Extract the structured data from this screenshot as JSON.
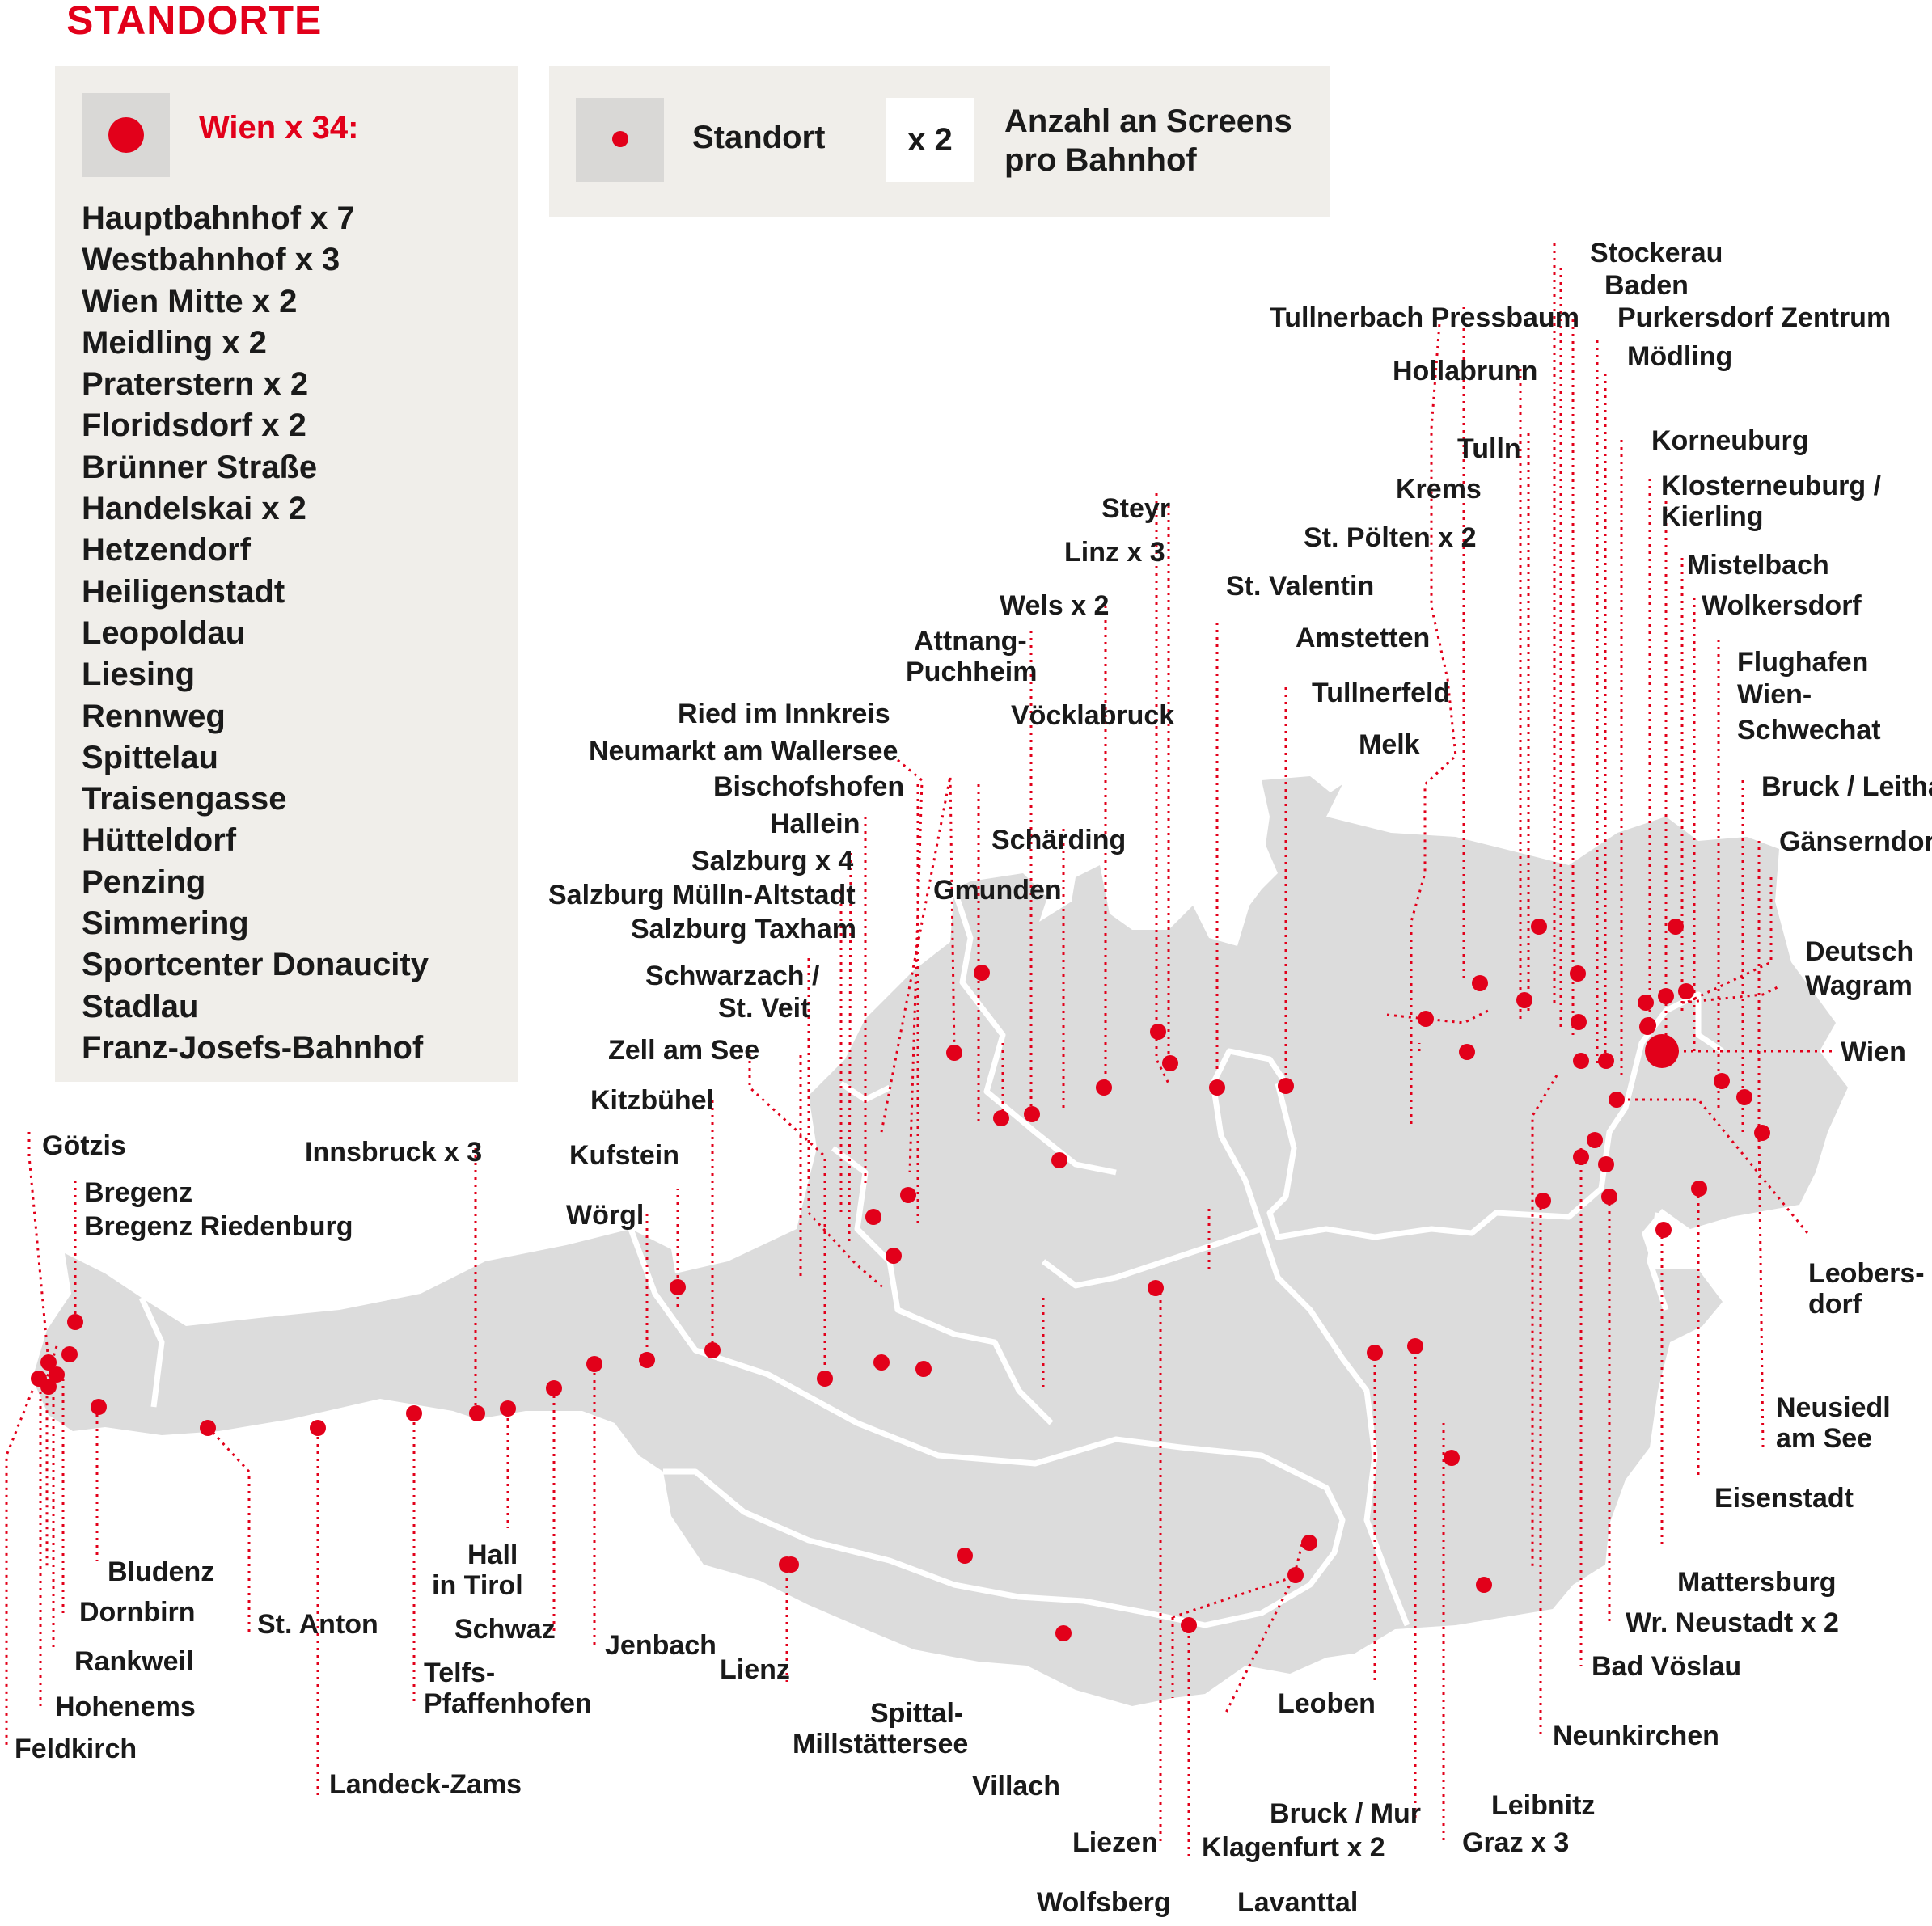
{
  "title": "STANDORTE",
  "wien_box": {
    "heading": "Wien x 34:",
    "stations": [
      "Hauptbahnhof x 7",
      "Westbahnhof x 3",
      "Wien Mitte x 2",
      "Meidling x 2",
      "Praterstern x 2",
      "Floridsdorf x 2",
      "Brünner Straße",
      "Handelskai x 2",
      "Hetzendorf",
      "Heiligenstadt",
      "Leopoldau",
      "Liesing",
      "Rennweg",
      "Spittelau",
      "Traisengasse",
      "Hütteldorf",
      "Penzing",
      "Simmering",
      "Sportcenter Donaucity",
      "Stadlau",
      "Franz-Josefs-Bahnhof"
    ]
  },
  "legend": {
    "standort_label": "Standort",
    "screens_badge": "x 2",
    "screens_label_line1": "Anzahl an Screens",
    "screens_label_line2": "pro Bahnhof"
  },
  "colors": {
    "accent": "#e2001a",
    "map_fill": "#dcdcdc",
    "panel_bg": "#f0eeea",
    "border": "#ffffff"
  },
  "locations": [
    "Götzis",
    "Bregenz",
    "Bregenz Riedenburg",
    "Bludenz",
    "Dornbirn",
    "Rankweil",
    "Hohenems",
    "Feldkirch",
    "Innsbruck x 3",
    "St. Anton",
    "Landeck-Zams",
    "Telfs-",
    "Pfaffenhofen",
    "Hall",
    "in Tirol",
    "Schwaz",
    "Jenbach",
    "Wörgl",
    "Kufstein",
    "Kitzbühel",
    "Zell am See",
    "Lienz",
    "Ried im Innkreis",
    "Neumarkt am Wallersee",
    "Bischofshofen",
    "Hallein",
    "Salzburg x 4",
    "Salzburg Mülln-Altstadt",
    "Salzburg Taxham",
    "Schwarzach /",
    "St. Veit",
    "Attnang-",
    "Puchheim",
    "Wels x 2",
    "Linz x 3",
    "Steyr",
    "Vöcklabruck",
    "Schärding",
    "Gmunden",
    "St. Valentin",
    "Amstetten",
    "Tullnerfeld",
    "Melk",
    "St. Pölten x 2",
    "Krems",
    "Tulln",
    "Hollabrunn",
    "Tullnerbach Pressbaum",
    "Stockerau",
    "Baden",
    "Purkersdorf Zentrum",
    "Mödling",
    "Korneuburg",
    "Klosterneuburg /",
    "Kierling",
    "Mistelbach",
    "Wolkersdorf",
    "Flughafen",
    "Wien-",
    "Schwechat",
    "Bruck / Leitha",
    "Gänserndorf",
    "Deutsch",
    "Wagram",
    "Wien",
    "Leobers-",
    "dorf",
    "Neusiedl",
    "am See",
    "Eisenstadt",
    "Mattersburg",
    "Wr. Neustadt x 2",
    "Bad Vöslau",
    "Neunkirchen",
    "Leibnitz",
    "Graz x 3",
    "Bruck / Mur",
    "Klagenfurt x 2",
    "Lavanttal",
    "Leoben",
    "Liezen",
    "Wolfsberg",
    "Villach",
    "Spittal-",
    "Millstättersee"
  ]
}
